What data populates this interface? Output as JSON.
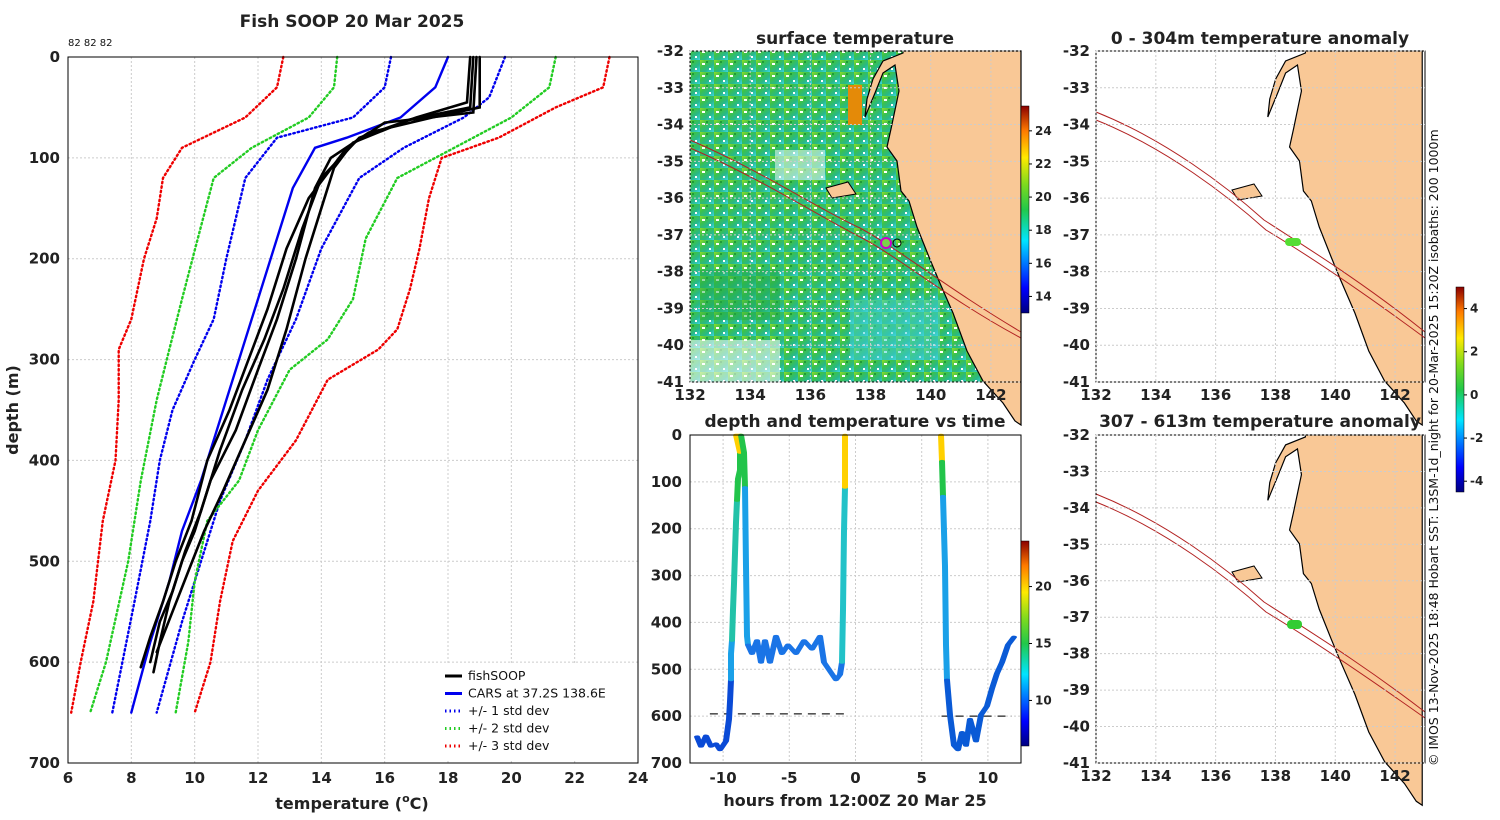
{
  "chart_data": [
    {
      "type": "line",
      "title": "Fish SOOP 20 Mar 2025",
      "top_note": "82 82 82",
      "xlabel": "temperature (",
      "xlabel_sup": "o",
      "xlabel_tail": "C)",
      "ylabel": "depth (m)",
      "xlim": [
        6,
        24
      ],
      "ylim": [
        0,
        700
      ],
      "y_reversed": true,
      "xticks": [
        6,
        8,
        10,
        12,
        14,
        16,
        18,
        20,
        22,
        24
      ],
      "yticks": [
        0,
        100,
        200,
        300,
        400,
        500,
        600,
        700
      ],
      "legend_position": "bottom-right",
      "legend": [
        "fishSOOP",
        "CARS at 37.2S 138.6E",
        "+/- 1 std dev",
        "+/- 2 std dev",
        "+/- 3 std dev"
      ],
      "colors": {
        "fishsoop": "#000000",
        "cars": "#0000ee",
        "std1": "#0000ee",
        "std2": "#22cc22",
        "std3": "#ee0000"
      },
      "series": [
        {
          "name": "CARS at 37.2S 138.6E",
          "style": "solid",
          "points": [
            [
              18,
              0
            ],
            [
              17.6,
              30
            ],
            [
              16.5,
              60
            ],
            [
              14.8,
              80
            ],
            [
              13.8,
              90
            ],
            [
              13.1,
              130
            ],
            [
              12.6,
              180
            ],
            [
              12,
              240
            ],
            [
              11.4,
              300
            ],
            [
              10.8,
              360
            ],
            [
              10.2,
              420
            ],
            [
              9.6,
              470
            ],
            [
              9.2,
              520
            ],
            [
              8.6,
              580
            ],
            [
              8.0,
              650
            ]
          ]
        },
        {
          "name": "+/- 1 std dev upper",
          "style": "dotted",
          "points": [
            [
              19.8,
              0
            ],
            [
              19.3,
              40
            ],
            [
              18.5,
              60
            ],
            [
              16.6,
              90
            ],
            [
              15.2,
              120
            ],
            [
              14,
              190
            ],
            [
              13.2,
              260
            ],
            [
              12.3,
              320
            ],
            [
              11.6,
              380
            ],
            [
              10.8,
              440
            ],
            [
              10.2,
              500
            ],
            [
              9.6,
              560
            ],
            [
              8.8,
              650
            ]
          ]
        },
        {
          "name": "+/- 1 std dev lower",
          "style": "dotted",
          "points": [
            [
              16.2,
              0
            ],
            [
              16,
              30
            ],
            [
              15,
              60
            ],
            [
              12.6,
              80
            ],
            [
              11.6,
              120
            ],
            [
              11,
              200
            ],
            [
              10.6,
              260
            ],
            [
              10,
              300
            ],
            [
              9.3,
              350
            ],
            [
              8.9,
              400
            ],
            [
              8.6,
              460
            ],
            [
              8.1,
              540
            ],
            [
              7.4,
              650
            ]
          ]
        },
        {
          "name": "+/- 2 std dev upper",
          "style": "dotted",
          "points": [
            [
              21.4,
              0
            ],
            [
              21.2,
              30
            ],
            [
              20,
              60
            ],
            [
              18.2,
              90
            ],
            [
              16.4,
              120
            ],
            [
              15.4,
              180
            ],
            [
              15,
              240
            ],
            [
              14.2,
              280
            ],
            [
              13,
              310
            ],
            [
              12,
              370
            ],
            [
              11.4,
              420
            ],
            [
              10.4,
              460
            ],
            [
              10,
              520
            ],
            [
              9.8,
              580
            ],
            [
              9.4,
              650
            ]
          ]
        },
        {
          "name": "+/- 2 std dev lower",
          "style": "dotted",
          "points": [
            [
              14.5,
              0
            ],
            [
              14.4,
              30
            ],
            [
              13.6,
              60
            ],
            [
              11.8,
              90
            ],
            [
              10.6,
              120
            ],
            [
              10.1,
              180
            ],
            [
              9.6,
              240
            ],
            [
              9.2,
              290
            ],
            [
              8.8,
              340
            ],
            [
              8.3,
              420
            ],
            [
              7.9,
              500
            ],
            [
              7.2,
              600
            ],
            [
              6.7,
              650
            ]
          ]
        },
        {
          "name": "+/- 3 std dev upper",
          "style": "dotted",
          "points": [
            [
              23.1,
              0
            ],
            [
              22.9,
              30
            ],
            [
              21.4,
              50
            ],
            [
              19.6,
              80
            ],
            [
              17.8,
              100
            ],
            [
              17.4,
              140
            ],
            [
              17.1,
              190
            ],
            [
              16.8,
              230
            ],
            [
              16.4,
              270
            ],
            [
              15.8,
              290
            ],
            [
              14.2,
              320
            ],
            [
              13.2,
              380
            ],
            [
              12,
              430
            ],
            [
              11.2,
              480
            ],
            [
              10.8,
              540
            ],
            [
              10.5,
              600
            ],
            [
              10.0,
              650
            ]
          ]
        },
        {
          "name": "+/- 3 std dev lower",
          "style": "dotted",
          "points": [
            [
              12.8,
              0
            ],
            [
              12.6,
              30
            ],
            [
              11.6,
              60
            ],
            [
              9.6,
              90
            ],
            [
              9.0,
              120
            ],
            [
              8.8,
              160
            ],
            [
              8.4,
              200
            ],
            [
              8.0,
              260
            ],
            [
              7.6,
              290
            ],
            [
              7.6,
              340
            ],
            [
              7.5,
              400
            ],
            [
              7.1,
              460
            ],
            [
              6.8,
              540
            ],
            [
              6.4,
              600
            ],
            [
              6.1,
              650
            ]
          ]
        },
        {
          "name": "fishSOOP 1",
          "style": "solid",
          "points": [
            [
              19,
              0
            ],
            [
              19,
              50
            ],
            [
              17.5,
              60
            ],
            [
              15.5,
              75
            ],
            [
              14.3,
              100
            ],
            [
              13.8,
              130
            ],
            [
              13.2,
              200
            ],
            [
              12.6,
              260
            ],
            [
              12.0,
              310
            ],
            [
              11.3,
              370
            ],
            [
              10.5,
              420
            ],
            [
              10.0,
              470
            ],
            [
              9.6,
              500
            ],
            [
              9.2,
              540
            ],
            [
              8.9,
              580
            ],
            [
              8.7,
              610
            ]
          ]
        },
        {
          "name": "fishSOOP 2",
          "style": "solid",
          "points": [
            [
              18.9,
              0
            ],
            [
              18.8,
              55
            ],
            [
              16,
              65
            ],
            [
              14.8,
              90
            ],
            [
              13.6,
              140
            ],
            [
              12.9,
              190
            ],
            [
              12.3,
              250
            ],
            [
              11.7,
              300
            ],
            [
              11.1,
              350
            ],
            [
              10.4,
              400
            ],
            [
              9.9,
              460
            ],
            [
              9.4,
              500
            ],
            [
              9.0,
              540
            ],
            [
              8.6,
              575
            ],
            [
              8.3,
              605
            ]
          ]
        },
        {
          "name": "fishSOOP 3",
          "style": "solid",
          "points": [
            [
              18.7,
              0
            ],
            [
              18.6,
              45
            ],
            [
              17,
              60
            ],
            [
              15.2,
              80
            ],
            [
              14.0,
              120
            ],
            [
              13.4,
              170
            ],
            [
              12.8,
              230
            ],
            [
              12.2,
              280
            ],
            [
              11.5,
              330
            ],
            [
              10.8,
              390
            ],
            [
              10.2,
              450
            ],
            [
              9.7,
              490
            ],
            [
              9.3,
              530
            ],
            [
              8.9,
              560
            ],
            [
              8.6,
              600
            ]
          ]
        },
        {
          "name": "fishSOOP 4",
          "style": "solid",
          "points": [
            [
              18.8,
              0
            ],
            [
              18.7,
              50
            ],
            [
              16.8,
              62
            ],
            [
              15.0,
              85
            ],
            [
              14.4,
              110
            ],
            [
              14.0,
              150
            ],
            [
              13.5,
              200
            ],
            [
              12.9,
              270
            ],
            [
              12.3,
              330
            ],
            [
              11.6,
              380
            ],
            [
              10.9,
              430
            ],
            [
              10.3,
              470
            ],
            [
              9.8,
              510
            ],
            [
              9.3,
              550
            ],
            [
              8.8,
              590
            ]
          ]
        }
      ]
    },
    {
      "type": "heatmap",
      "title": "surface temperature",
      "xlim": [
        132,
        143
      ],
      "ylim": [
        -41,
        -32
      ],
      "xticks": [
        132,
        134,
        136,
        138,
        140,
        142
      ],
      "yticks": [
        -32,
        -33,
        -34,
        -35,
        -36,
        -37,
        -38,
        -39,
        -40,
        -41
      ],
      "colorbar_ticks": [
        14,
        16,
        18,
        20,
        22,
        24
      ],
      "colorbar_range": [
        13,
        25.5
      ]
    },
    {
      "type": "scatter",
      "title": "depth and temperature vs time",
      "xlabel": "hours from 12:00Z 20 Mar 25",
      "xlim": [
        -12.5,
        12.5
      ],
      "ylim": [
        0,
        700
      ],
      "y_reversed": true,
      "xticks": [
        -10,
        -5,
        0,
        5,
        10
      ],
      "yticks": [
        0,
        100,
        200,
        300,
        400,
        500,
        600,
        700
      ],
      "colorbar_ticks": [
        10,
        15,
        20
      ],
      "colorbar_range": [
        6,
        24
      ],
      "bottom_depth": [
        {
          "x0": -11,
          "x1": -0.8,
          "depth": 595
        },
        {
          "x0": 6.5,
          "x1": 11.8,
          "depth": 600
        }
      ]
    },
    {
      "type": "heatmap",
      "title": "0 - 304m temperature anomaly",
      "xlim": [
        132,
        143
      ],
      "ylim": [
        -41,
        -32
      ],
      "xticks": [
        132,
        134,
        136,
        138,
        140,
        142
      ],
      "yticks": [
        -32,
        -33,
        -34,
        -35,
        -36,
        -37,
        -38,
        -39,
        -40,
        -41
      ]
    },
    {
      "type": "heatmap",
      "title": "307 - 613m temperature anomaly",
      "xlim": [
        132,
        143
      ],
      "ylim": [
        -41,
        -32
      ],
      "xticks": [
        132,
        134,
        136,
        138,
        140,
        142
      ],
      "yticks": [
        -32,
        -33,
        -34,
        -35,
        -36,
        -37,
        -38,
        -39,
        -40,
        -41
      ],
      "colorbar_ticks": [
        -4,
        -2,
        0,
        2,
        4
      ],
      "colorbar_range": [
        -4.5,
        5
      ]
    }
  ],
  "credit": "© IMOS 13-Nov-2025 18:48 Hobart SST: L3SM-1d_night for 20-Mar-2025 15:20Z isobaths: 200  1000m"
}
